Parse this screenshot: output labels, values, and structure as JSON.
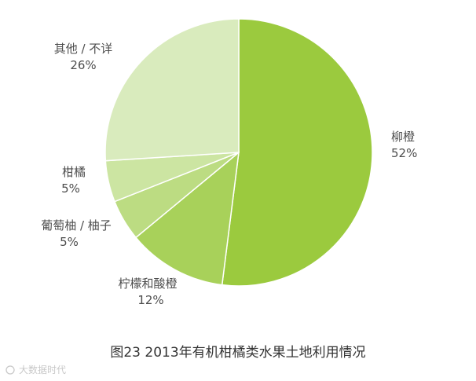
{
  "chart_data": {
    "type": "pie",
    "title": "",
    "slices": [
      {
        "label": "柳橙",
        "value": 52,
        "value_text": "52%",
        "color": "#9bca3e"
      },
      {
        "label": "柠檬和酸橙",
        "value": 12,
        "value_text": "12%",
        "color": "#a8d15a"
      },
      {
        "label": "葡萄柚 / 柚子",
        "value": 5,
        "value_text": "5%",
        "color": "#bcdc82"
      },
      {
        "label": "柑橘",
        "value": 5,
        "value_text": "5%",
        "color": "#cce5a2"
      },
      {
        "label": "其他 / 不详",
        "value": 26,
        "value_text": "26%",
        "color": "#d9ebbd"
      }
    ]
  },
  "caption": "图23 2013年有机柑橘类水果土地利用情况",
  "watermark": "大数据时代"
}
